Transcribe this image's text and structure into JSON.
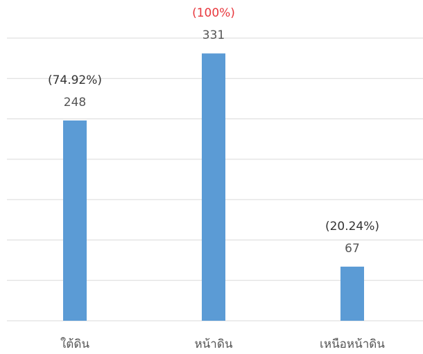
{
  "chart_data": {
    "type": "bar",
    "categories": [
      "ใต้ดิน",
      "หน้าดิน",
      "เหนือหน้าดิน"
    ],
    "values": [
      248,
      331,
      67
    ],
    "percent_labels": [
      "(74.92%)",
      "(100%)",
      "(20.24%)"
    ],
    "percent_label_colors": [
      "#333333",
      "#e8373d",
      "#333333"
    ],
    "color": "#5b9bd5",
    "ylim": [
      0,
      350
    ],
    "yticks": [
      0,
      50,
      100,
      150,
      200,
      250,
      300,
      350
    ],
    "grid": true
  }
}
